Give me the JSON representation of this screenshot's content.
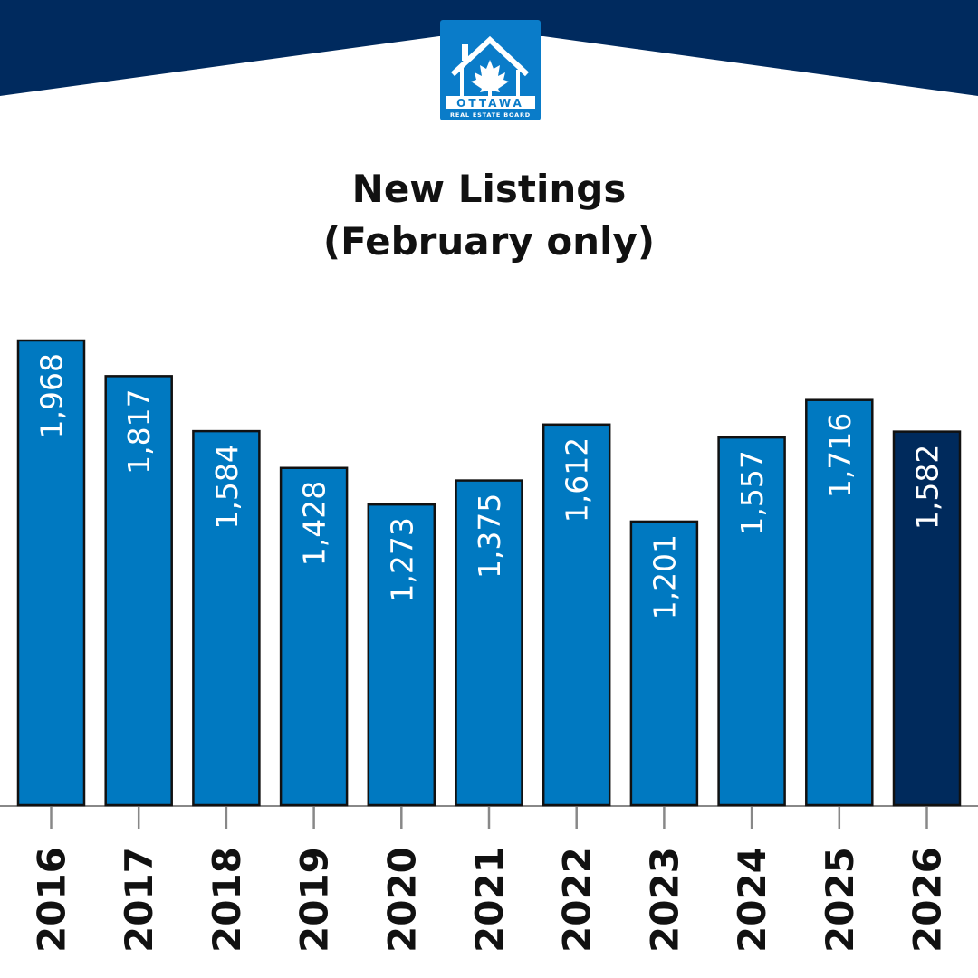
{
  "logo": {
    "line1": "OTTAWA",
    "line2": "REAL ESTATE BOARD"
  },
  "colors": {
    "header": "#002a5e",
    "bar": "#0079c1",
    "highlight": "#002a5c",
    "axis": "#888888"
  },
  "chart_data": {
    "type": "bar",
    "title": "New Listings",
    "subtitle": "(February only)",
    "categories": [
      "2016",
      "2017",
      "2018",
      "2019",
      "2020",
      "2021",
      "2022",
      "2023",
      "2024",
      "2025",
      "2026"
    ],
    "values": [
      1968,
      1817,
      1584,
      1428,
      1273,
      1375,
      1612,
      1201,
      1557,
      1716,
      1582
    ],
    "value_labels": [
      "1,968",
      "1,817",
      "1,584",
      "1,428",
      "1,273",
      "1,375",
      "1,612",
      "1,201",
      "1,557",
      "1,716",
      "1,582"
    ],
    "highlight_category": "2026",
    "xlabel": "",
    "ylabel": "",
    "ylim": [
      0,
      2000
    ],
    "grid": false,
    "legend": "none"
  }
}
